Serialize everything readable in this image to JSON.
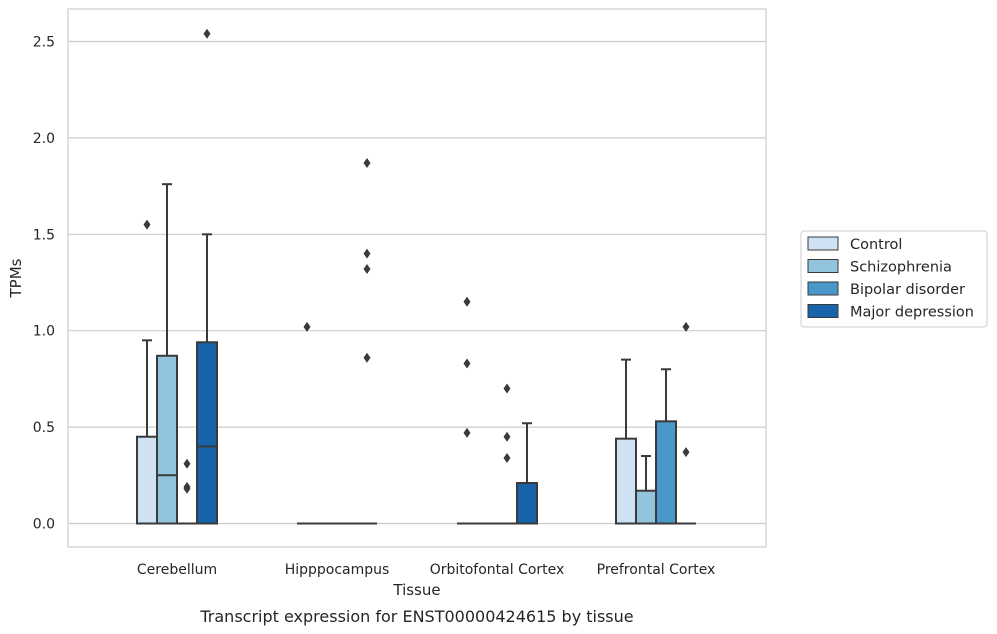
{
  "chart_data": {
    "type": "box",
    "xlabel": "Tissue",
    "ylabel": "TPMs",
    "ylim": [
      -0.12,
      2.67
    ],
    "yticks": [
      "0.0",
      "0.5",
      "1.0",
      "1.5",
      "2.0",
      "2.5"
    ],
    "ytick_values": [
      0,
      0.5,
      1.0,
      1.5,
      2.0,
      2.5
    ],
    "grid": "horizontal",
    "legend_position": "outside-right",
    "categories": [
      "Cerebellum",
      "Hipppocampus",
      "Orbitofontal Cortex",
      "Prefrontal Cortex"
    ],
    "series": [
      {
        "name": "Control",
        "color": "#cfe1f2",
        "boxes": [
          {
            "whislo": 0,
            "q1": 0,
            "med": 0,
            "q3": 0.45,
            "whishi": 0.95,
            "fliers": [
              1.55
            ]
          },
          {
            "whislo": 0,
            "q1": 0,
            "med": 0,
            "q3": 0,
            "whishi": 0,
            "fliers": [
              1.02
            ]
          },
          {
            "whislo": 0,
            "q1": 0,
            "med": 0,
            "q3": 0,
            "whishi": 0,
            "fliers": [
              1.15,
              0.83,
              0.47
            ]
          },
          {
            "whislo": 0,
            "q1": 0,
            "med": 0,
            "q3": 0.44,
            "whishi": 0.85,
            "fliers": []
          }
        ]
      },
      {
        "name": "Schizophrenia",
        "color": "#93c4de",
        "boxes": [
          {
            "whislo": 0,
            "q1": 0,
            "med": 0.25,
            "q3": 0.87,
            "whishi": 1.76,
            "fliers": []
          },
          {
            "whislo": 0,
            "q1": 0,
            "med": 0,
            "q3": 0,
            "whishi": 0,
            "fliers": []
          },
          {
            "whislo": 0,
            "q1": 0,
            "med": 0,
            "q3": 0,
            "whishi": 0,
            "fliers": []
          },
          {
            "whislo": 0,
            "q1": 0,
            "med": 0,
            "q3": 0.17,
            "whishi": 0.35,
            "fliers": []
          }
        ]
      },
      {
        "name": "Bipolar disorder",
        "color": "#4a98c9",
        "boxes": [
          {
            "whislo": 0,
            "q1": 0,
            "med": 0,
            "q3": 0,
            "whishi": 0,
            "fliers": [
              0.31,
              0.19,
              0.18
            ]
          },
          {
            "whislo": 0,
            "q1": 0,
            "med": 0,
            "q3": 0,
            "whishi": 0,
            "fliers": []
          },
          {
            "whislo": 0,
            "q1": 0,
            "med": 0,
            "q3": 0,
            "whishi": 0,
            "fliers": [
              0.7,
              0.45,
              0.34
            ]
          },
          {
            "whislo": 0,
            "q1": 0,
            "med": 0,
            "q3": 0.53,
            "whishi": 0.8,
            "fliers": []
          }
        ]
      },
      {
        "name": "Major depression",
        "color": "#1764ab",
        "boxes": [
          {
            "whislo": 0,
            "q1": 0,
            "med": 0.4,
            "q3": 0.94,
            "whishi": 1.5,
            "fliers": [
              2.54
            ]
          },
          {
            "whislo": 0,
            "q1": 0,
            "med": 0,
            "q3": 0,
            "whishi": 0,
            "fliers": [
              1.87,
              1.4,
              1.32,
              0.86
            ]
          },
          {
            "whislo": 0,
            "q1": 0,
            "med": 0,
            "q3": 0.21,
            "whishi": 0.52,
            "fliers": []
          },
          {
            "whislo": 0,
            "q1": 0,
            "med": 0,
            "q3": 0,
            "whishi": 0,
            "fliers": [
              1.02,
              0.37
            ]
          }
        ]
      }
    ]
  },
  "caption": "Transcript expression for ENST00000424615 by tissue"
}
